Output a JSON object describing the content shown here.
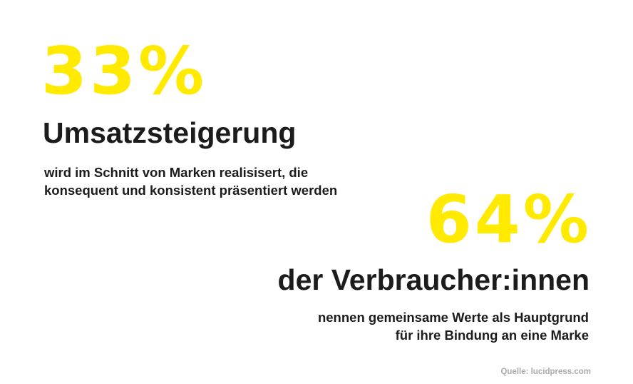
{
  "colors": {
    "accent": "#ffea00",
    "text": "#1c1c1c",
    "muted": "#aaaaaa",
    "background": "#ffffff"
  },
  "stat1": {
    "value": "33%",
    "headline": "Umsatzsteigerung",
    "description_line1": "wird im Schnitt von Marken realisisert, die",
    "description_line2": "konsequent und konsistent präsentiert werden"
  },
  "stat2": {
    "value": "64%",
    "headline": "der Verbraucher:innen",
    "description_line1": "nennen gemeinsame Werte als Hauptgrund",
    "description_line2": "für ihre Bindung an eine Marke"
  },
  "source": "Quelle: lucidpress.com"
}
